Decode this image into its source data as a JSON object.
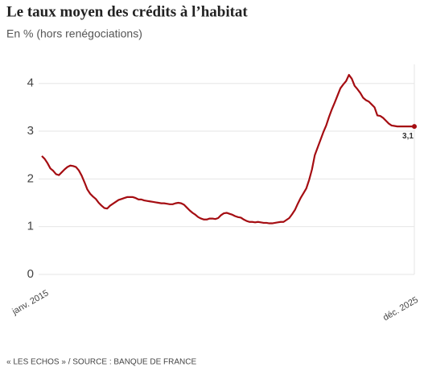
{
  "chart_data": {
    "type": "line",
    "title": "Le taux moyen des crédits à l’habitat",
    "subtitle": "En % (hors renégociations)",
    "source": "« LES ECHOS » / SOURCE : BANQUE DE FRANCE",
    "color": "#a50d12",
    "grid": true,
    "ylim": [
      0,
      4.4
    ],
    "yticks": [
      0,
      1,
      2,
      3,
      4
    ],
    "categories": [
      "janv. 2015",
      null,
      null,
      null,
      null,
      null,
      null,
      null,
      null,
      null,
      null,
      null,
      null,
      null,
      null,
      null,
      null,
      null,
      null,
      null,
      null,
      null,
      null,
      null,
      null,
      null,
      null,
      null,
      null,
      null,
      null,
      null,
      null,
      null,
      null,
      null,
      null,
      null,
      null,
      null,
      null,
      null,
      null,
      null,
      null,
      null,
      null,
      null,
      null,
      null,
      null,
      null,
      null,
      null,
      null,
      null,
      null,
      null,
      null,
      null,
      null,
      null,
      null,
      null,
      null,
      null,
      null,
      null,
      null,
      null,
      null,
      null,
      null,
      null,
      null,
      null,
      null,
      null,
      null,
      null,
      null,
      null,
      null,
      null,
      null,
      null,
      null,
      null,
      null,
      null,
      null,
      null,
      null,
      null,
      null,
      null,
      null,
      null,
      null,
      null,
      null,
      null,
      null,
      null,
      null,
      null,
      null,
      null,
      null,
      null,
      null,
      null,
      null,
      null,
      null,
      null,
      null,
      null,
      null,
      null,
      null,
      null,
      null,
      null,
      null,
      null,
      null,
      null,
      null,
      null,
      null,
      "déc. 2025"
    ],
    "values": [
      2.48,
      2.42,
      2.33,
      2.22,
      2.17,
      2.1,
      2.08,
      2.14,
      2.2,
      2.25,
      2.28,
      2.27,
      2.25,
      2.18,
      2.07,
      1.93,
      1.78,
      1.69,
      1.63,
      1.58,
      1.5,
      1.44,
      1.39,
      1.38,
      1.44,
      1.48,
      1.52,
      1.56,
      1.58,
      1.6,
      1.62,
      1.62,
      1.62,
      1.6,
      1.57,
      1.57,
      1.55,
      1.54,
      1.53,
      1.52,
      1.51,
      1.5,
      1.49,
      1.49,
      1.48,
      1.47,
      1.47,
      1.49,
      1.5,
      1.49,
      1.46,
      1.4,
      1.34,
      1.29,
      1.25,
      1.2,
      1.17,
      1.15,
      1.15,
      1.17,
      1.17,
      1.16,
      1.18,
      1.24,
      1.28,
      1.29,
      1.27,
      1.25,
      1.22,
      1.2,
      1.19,
      1.15,
      1.12,
      1.1,
      1.1,
      1.09,
      1.1,
      1.09,
      1.08,
      1.08,
      1.07,
      1.07,
      1.08,
      1.09,
      1.1,
      1.1,
      1.14,
      1.18,
      1.26,
      1.35,
      1.48,
      1.6,
      1.7,
      1.8,
      1.98,
      2.2,
      2.5,
      2.66,
      2.82,
      2.98,
      3.12,
      3.3,
      3.46,
      3.6,
      3.75,
      3.9,
      3.98,
      4.05,
      4.18,
      4.1,
      3.95,
      3.88,
      3.8,
      3.7,
      3.65,
      3.62,
      3.56,
      3.5,
      3.33,
      3.32,
      3.28,
      3.22,
      3.16,
      3.12,
      3.11,
      3.1,
      3.1,
      3.1,
      3.1,
      3.1,
      3.1,
      3.1
    ],
    "value_labels": [
      null,
      null,
      null,
      null,
      null,
      null,
      null,
      null,
      null,
      null,
      null,
      null,
      null,
      null,
      null,
      null,
      null,
      null,
      null,
      null,
      null,
      null,
      null,
      null,
      null,
      null,
      null,
      null,
      null,
      null,
      null,
      null,
      null,
      null,
      null,
      null,
      null,
      null,
      null,
      null,
      null,
      null,
      null,
      null,
      null,
      null,
      null,
      null,
      null,
      null,
      null,
      null,
      null,
      null,
      null,
      null,
      null,
      null,
      null,
      null,
      null,
      null,
      null,
      null,
      null,
      null,
      null,
      null,
      null,
      null,
      null,
      null,
      null,
      null,
      null,
      null,
      null,
      null,
      null,
      null,
      null,
      null,
      null,
      null,
      null,
      null,
      null,
      null,
      null,
      null,
      null,
      null,
      null,
      null,
      null,
      null,
      null,
      null,
      null,
      null,
      null,
      null,
      null,
      null,
      null,
      null,
      null,
      null,
      null,
      null,
      null,
      null,
      null,
      null,
      null,
      null,
      null,
      null,
      null,
      null,
      null,
      null,
      null,
      null,
      null,
      null,
      null,
      null,
      null,
      null,
      null,
      "3,1"
    ]
  }
}
